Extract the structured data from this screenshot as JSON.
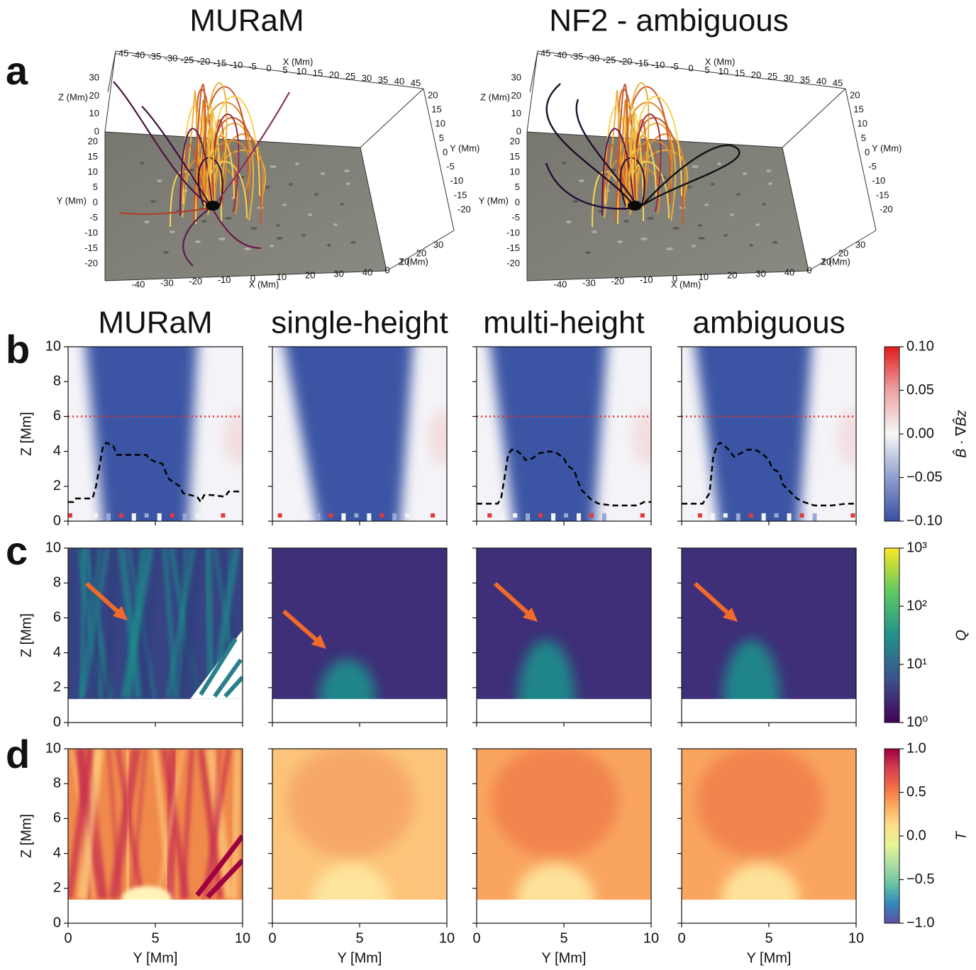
{
  "panel_labels": [
    "a",
    "b",
    "c",
    "d"
  ],
  "panel_a": [
    {
      "title": "MURaM",
      "x_label": "X (Mm)",
      "y_label": "Y (Mm)",
      "z_label": "Z (Mm)",
      "x_top_ticks": [
        -45,
        -40,
        -35,
        -30,
        -25,
        -20,
        -15,
        -10,
        -5,
        0,
        5,
        10,
        15,
        20,
        25,
        30,
        35,
        40,
        45
      ],
      "x_bottom_ticks": [
        -40,
        -30,
        -20,
        -10,
        0,
        10,
        20,
        30,
        40
      ],
      "y_left_ticks": [
        20,
        15,
        10,
        5,
        0,
        -5,
        -10,
        -15,
        -20
      ],
      "y_right_ticks": [
        20,
        15,
        10,
        5,
        0,
        -5,
        -10,
        -15,
        -20
      ],
      "z_left_ticks": [
        30,
        20,
        10,
        0
      ],
      "z_right_ticks": [
        0,
        10,
        20,
        30
      ]
    },
    {
      "title": "NF2 - ambiguous",
      "x_label": "X (Mm)",
      "y_label": "Y (Mm)",
      "z_label": "Z (Mm)",
      "x_top_ticks": [
        -45,
        -40,
        -35,
        -30,
        -25,
        -20,
        -15,
        -10,
        -5,
        0,
        5,
        10,
        15,
        20,
        25,
        30,
        35,
        40,
        45
      ],
      "x_bottom_ticks": [
        -40,
        -30,
        -20,
        -10,
        0,
        10,
        20,
        30,
        40
      ],
      "y_left_ticks": [
        20,
        15,
        10,
        5,
        0,
        -5,
        -10,
        -15,
        -20
      ],
      "y_right_ticks": [
        20,
        15,
        10,
        5,
        0,
        -5,
        -10,
        -15,
        -20
      ],
      "z_left_ticks": [
        30,
        20,
        10,
        0
      ],
      "z_right_ticks": [
        0,
        10,
        20,
        30
      ]
    }
  ],
  "chart_data": [
    {
      "type": "heatmap",
      "title": "MURaM",
      "colormap": "RdBu_r",
      "ylabel": "Z [Mm]",
      "xlim": [
        0,
        10
      ],
      "ylim": [
        0,
        10
      ],
      "xticks": [
        0,
        5,
        10
      ],
      "yticks": [
        0,
        2,
        4,
        6,
        8,
        10
      ],
      "xtick_labels": false,
      "ytick_labels": true,
      "hline": 6,
      "hline_color": "#e8312a",
      "contour_color": "#000000",
      "contour": {
        "x": [
          0,
          0.3,
          0.4,
          1.4,
          1.6,
          2.0,
          2.2,
          2.6,
          2.8,
          4.5,
          4.6,
          5.0,
          5.4,
          5.6,
          5.8,
          6.4,
          6.6,
          7.4,
          7.6,
          7.8,
          8.2,
          9.0,
          9.2,
          10
        ],
        "y": [
          1.1,
          1.1,
          1.3,
          1.3,
          2.0,
          4.3,
          4.5,
          4.3,
          3.8,
          3.8,
          3.6,
          3.4,
          3.3,
          2.8,
          2.4,
          2.0,
          1.6,
          1.4,
          1.1,
          1.5,
          1.5,
          1.4,
          1.7,
          1.7
        ]
      }
    },
    {
      "type": "heatmap",
      "title": "single-height",
      "colormap": "RdBu_r",
      "xlim": [
        0,
        10
      ],
      "ylim": [
        0,
        10
      ],
      "xticks": [
        0,
        5,
        10
      ],
      "yticks": [
        0,
        2,
        4,
        6,
        8,
        10
      ],
      "xtick_labels": false,
      "ytick_labels": false
    },
    {
      "type": "heatmap",
      "title": "multi-height",
      "colormap": "RdBu_r",
      "xlim": [
        0,
        10
      ],
      "ylim": [
        0,
        10
      ],
      "xticks": [
        0,
        5,
        10
      ],
      "yticks": [
        0,
        2,
        4,
        6,
        8,
        10
      ],
      "xtick_labels": false,
      "ytick_labels": false,
      "hline": 6,
      "hline_color": "#e8312a",
      "contour_color": "#000000",
      "contour": {
        "x": [
          0,
          1.2,
          1.4,
          1.6,
          1.8,
          2.0,
          2.2,
          2.6,
          2.8,
          3.2,
          3.6,
          4.2,
          4.6,
          5.0,
          5.2,
          5.6,
          5.8,
          6.0,
          6.2,
          6.6,
          7.0,
          7.8,
          8.6,
          9.2,
          9.6,
          10
        ],
        "y": [
          1.0,
          1.0,
          1.3,
          2.5,
          3.8,
          4.1,
          4.1,
          3.8,
          3.5,
          3.6,
          3.9,
          4.0,
          3.9,
          3.6,
          3.2,
          2.9,
          2.3,
          1.8,
          1.6,
          1.2,
          1.0,
          0.9,
          0.9,
          0.9,
          1.1,
          1.1
        ]
      }
    },
    {
      "type": "heatmap",
      "title": "ambiguous",
      "colormap": "RdBu_r",
      "xlim": [
        0,
        10
      ],
      "ylim": [
        0,
        10
      ],
      "xticks": [
        0,
        5,
        10
      ],
      "yticks": [
        0,
        2,
        4,
        6,
        8,
        10
      ],
      "xtick_labels": false,
      "ytick_labels": false,
      "hline": 6,
      "hline_color": "#e8312a",
      "contour_color": "#000000",
      "contour": {
        "x": [
          0,
          1.2,
          1.6,
          1.8,
          2.0,
          2.2,
          2.6,
          3.0,
          3.4,
          3.8,
          4.2,
          4.6,
          5.0,
          5.2,
          5.6,
          5.8,
          6.2,
          6.6,
          7.0,
          7.6,
          8.6,
          9.4,
          10
        ],
        "y": [
          1.0,
          1.0,
          1.6,
          3.6,
          4.3,
          4.5,
          4.2,
          3.7,
          3.9,
          4.1,
          4.1,
          3.9,
          3.5,
          3.0,
          2.8,
          2.1,
          1.7,
          1.3,
          1.1,
          0.9,
          0.9,
          1.0,
          1.0
        ]
      }
    },
    {
      "type": "heatmap",
      "colormap": "viridis",
      "ylabel": "Z [Mm]",
      "xlim": [
        0,
        10
      ],
      "ylim": [
        0,
        10
      ],
      "xticks": [
        0,
        5,
        10
      ],
      "yticks": [
        0,
        2,
        4,
        6,
        8,
        10
      ],
      "xtick_labels": false,
      "ytick_labels": true,
      "blank_below": 1.35
    },
    {
      "type": "heatmap",
      "colormap": "viridis",
      "xlim": [
        0,
        10
      ],
      "ylim": [
        0,
        10
      ],
      "xticks": [
        0,
        5,
        10
      ],
      "yticks": [
        0,
        2,
        4,
        6,
        8,
        10
      ],
      "xtick_labels": false,
      "ytick_labels": false,
      "blank_below": 1.35
    },
    {
      "type": "heatmap",
      "colormap": "viridis",
      "xlim": [
        0,
        10
      ],
      "ylim": [
        0,
        10
      ],
      "xticks": [
        0,
        5,
        10
      ],
      "yticks": [
        0,
        2,
        4,
        6,
        8,
        10
      ],
      "xtick_labels": false,
      "ytick_labels": false,
      "blank_below": 1.35
    },
    {
      "type": "heatmap",
      "colormap": "viridis",
      "xlim": [
        0,
        10
      ],
      "ylim": [
        0,
        10
      ],
      "xticks": [
        0,
        5,
        10
      ],
      "yticks": [
        0,
        2,
        4,
        6,
        8,
        10
      ],
      "xtick_labels": false,
      "ytick_labels": false,
      "blank_below": 1.35
    },
    {
      "type": "heatmap",
      "colormap": "Spectral_r",
      "ylabel": "Z [Mm]",
      "xlabel": "Y [Mm]",
      "xlim": [
        0,
        10
      ],
      "ylim": [
        0,
        10
      ],
      "xticks": [
        0,
        5,
        10
      ],
      "yticks": [
        0,
        2,
        4,
        6,
        8,
        10
      ],
      "xtick_labels": true,
      "ytick_labels": true,
      "blank_below": 1.35
    },
    {
      "type": "heatmap",
      "colormap": "Spectral_r",
      "xlabel": "Y [Mm]",
      "xlim": [
        0,
        10
      ],
      "ylim": [
        0,
        10
      ],
      "xticks": [
        0,
        5,
        10
      ],
      "yticks": [
        0,
        2,
        4,
        6,
        8,
        10
      ],
      "xtick_labels": true,
      "ytick_labels": false,
      "blank_below": 1.35
    },
    {
      "type": "heatmap",
      "colormap": "Spectral_r",
      "xlabel": "Y [Mm]",
      "xlim": [
        0,
        10
      ],
      "ylim": [
        0,
        10
      ],
      "xticks": [
        0,
        5,
        10
      ],
      "yticks": [
        0,
        2,
        4,
        6,
        8,
        10
      ],
      "xtick_labels": true,
      "ytick_labels": false,
      "blank_below": 1.35
    },
    {
      "type": "heatmap",
      "colormap": "Spectral_r",
      "xlabel": "Y [Mm]",
      "xlim": [
        0,
        10
      ],
      "ylim": [
        0,
        10
      ],
      "xticks": [
        0,
        5,
        10
      ],
      "yticks": [
        0,
        2,
        4,
        6,
        8,
        10
      ],
      "xtick_labels": true,
      "ytick_labels": false,
      "blank_below": 1.35
    },
    {
      "type": "colorbar",
      "colormap": "RdBu_r",
      "label": "B̂ · ∇B̂z",
      "lim": [
        -0.1,
        0.1
      ],
      "ticks": [
        {
          "value": 0.1,
          "label": "0.10"
        },
        0.05,
        {
          "value": 0,
          "label": "0.00"
        },
        {
          "value": -0.05,
          "label": "−0.05"
        },
        {
          "value": -0.1,
          "label": "−0.10"
        }
      ]
    },
    {
      "type": "colorbar",
      "colormap": "viridis",
      "label": "Q",
      "log": true,
      "lim": [
        1,
        1000
      ],
      "ticks": [
        {
          "value": 1000,
          "label": "10³"
        },
        {
          "value": 100,
          "label": "10²"
        },
        {
          "value": 10,
          "label": "10¹"
        },
        {
          "value": 1,
          "label": "10⁰"
        }
      ]
    },
    {
      "type": "colorbar",
      "colormap": "Spectral_r",
      "label": "T",
      "lim": [
        -1,
        1
      ],
      "ticks": [
        {
          "value": 1,
          "label": "1.0"
        },
        0.5,
        {
          "value": 0,
          "label": "0.0"
        },
        {
          "value": -0.5,
          "label": "−0.5"
        },
        {
          "value": -1,
          "label": "−1.0"
        }
      ]
    }
  ]
}
